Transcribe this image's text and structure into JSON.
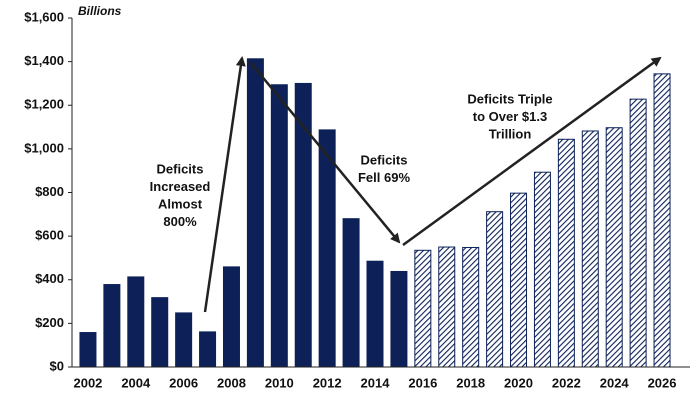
{
  "chart_data": {
    "type": "bar",
    "unit_label": "Billions",
    "categories": [
      "2002",
      null,
      "2004",
      null,
      "2006",
      null,
      "2008",
      null,
      "2010",
      null,
      "2012",
      null,
      "2014",
      null,
      "2016",
      null,
      "2018",
      null,
      "2020",
      null,
      "2022",
      null,
      "2024",
      null,
      "2026"
    ],
    "values": [
      158,
      378,
      413,
      318,
      248,
      161,
      459,
      1413,
      1294,
      1300,
      1087,
      680,
      485,
      438,
      535,
      550,
      548,
      712,
      797,
      893,
      1044,
      1082,
      1097,
      1228,
      1344
    ],
    "bar_styles": [
      "solid",
      "solid",
      "solid",
      "solid",
      "solid",
      "solid",
      "solid",
      "solid",
      "solid",
      "solid",
      "solid",
      "solid",
      "solid",
      "solid",
      "hatched",
      "hatched",
      "hatched",
      "hatched",
      "hatched",
      "hatched",
      "hatched",
      "hatched",
      "hatched",
      "hatched",
      "hatched"
    ],
    "color": "#0d2158",
    "ylim": [
      0,
      1600
    ],
    "yticks": [
      {
        "value": 0,
        "label": "$0"
      },
      {
        "value": 200,
        "label": "$200"
      },
      {
        "value": 400,
        "label": "$400"
      },
      {
        "value": 600,
        "label": "$600"
      },
      {
        "value": 800,
        "label": "$800"
      },
      {
        "value": 1000,
        "label": "$1,000"
      },
      {
        "value": 1200,
        "label": "$1,200"
      },
      {
        "value": 1400,
        "label": "$1,400"
      },
      {
        "value": 1600,
        "label": "$1,600"
      }
    ],
    "grid": false,
    "annotations": [
      {
        "lines": [
          "Deficits",
          "Increased",
          "Almost",
          "800%"
        ]
      },
      {
        "lines": [
          "Deficits",
          "Fell 69%"
        ]
      },
      {
        "lines": [
          "Deficits Triple",
          "to Over $1.3",
          "Trillion"
        ]
      }
    ]
  }
}
